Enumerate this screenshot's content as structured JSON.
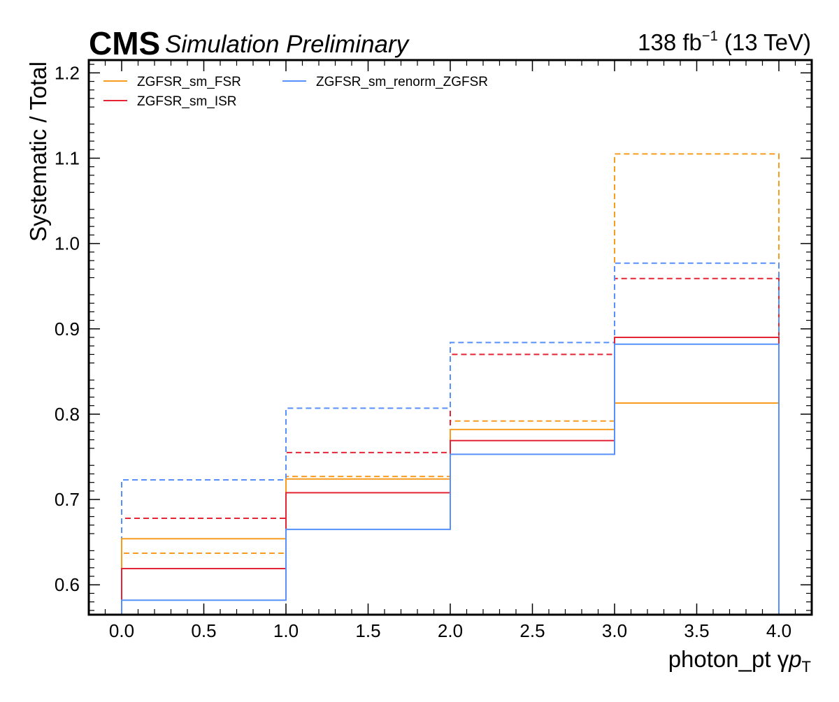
{
  "header": {
    "experiment": "CMS",
    "tag": "Simulation Preliminary",
    "lumi_value": "138 fb",
    "lumi_exponent": "−1",
    "lumi_energy": "(13 TeV)"
  },
  "chart_data": {
    "type": "line",
    "subtype": "step-histogram",
    "title": "",
    "xlabel": "photon_pt",
    "xlabel_symbol": "γ",
    "xlabel_var": "p",
    "xlabel_sub": "T",
    "ylabel": "Systematic / Total",
    "xlim": [
      -0.2,
      4.2
    ],
    "ylim": [
      0.565,
      1.215
    ],
    "x_ticks": [
      "0.0",
      "0.5",
      "1.0",
      "1.5",
      "2.0",
      "2.5",
      "3.0",
      "3.5",
      "4.0"
    ],
    "y_ticks": [
      "0.6",
      "0.7",
      "0.8",
      "0.9",
      "1.0",
      "1.1",
      "1.2"
    ],
    "bin_edges": [
      0,
      1,
      2,
      3,
      4
    ],
    "legend_position": "top-left",
    "grid": false,
    "series": [
      {
        "name": "ZGFSR_sm_FSR",
        "color": "#f89c20",
        "solid": [
          0.654,
          0.724,
          0.782,
          0.813
        ],
        "dashed": [
          0.637,
          0.727,
          0.792,
          1.105
        ]
      },
      {
        "name": "ZGFSR_sm_ISR",
        "color": "#e42536",
        "solid": [
          0.619,
          0.708,
          0.769,
          0.89
        ],
        "dashed": [
          0.678,
          0.755,
          0.87,
          0.959
        ]
      },
      {
        "name": "ZGFSR_sm_renorm_ZGFSR",
        "color": "#5790fc",
        "solid": [
          0.582,
          0.665,
          0.753,
          0.882
        ],
        "dashed": [
          0.723,
          0.807,
          0.884,
          0.977
        ]
      }
    ]
  }
}
